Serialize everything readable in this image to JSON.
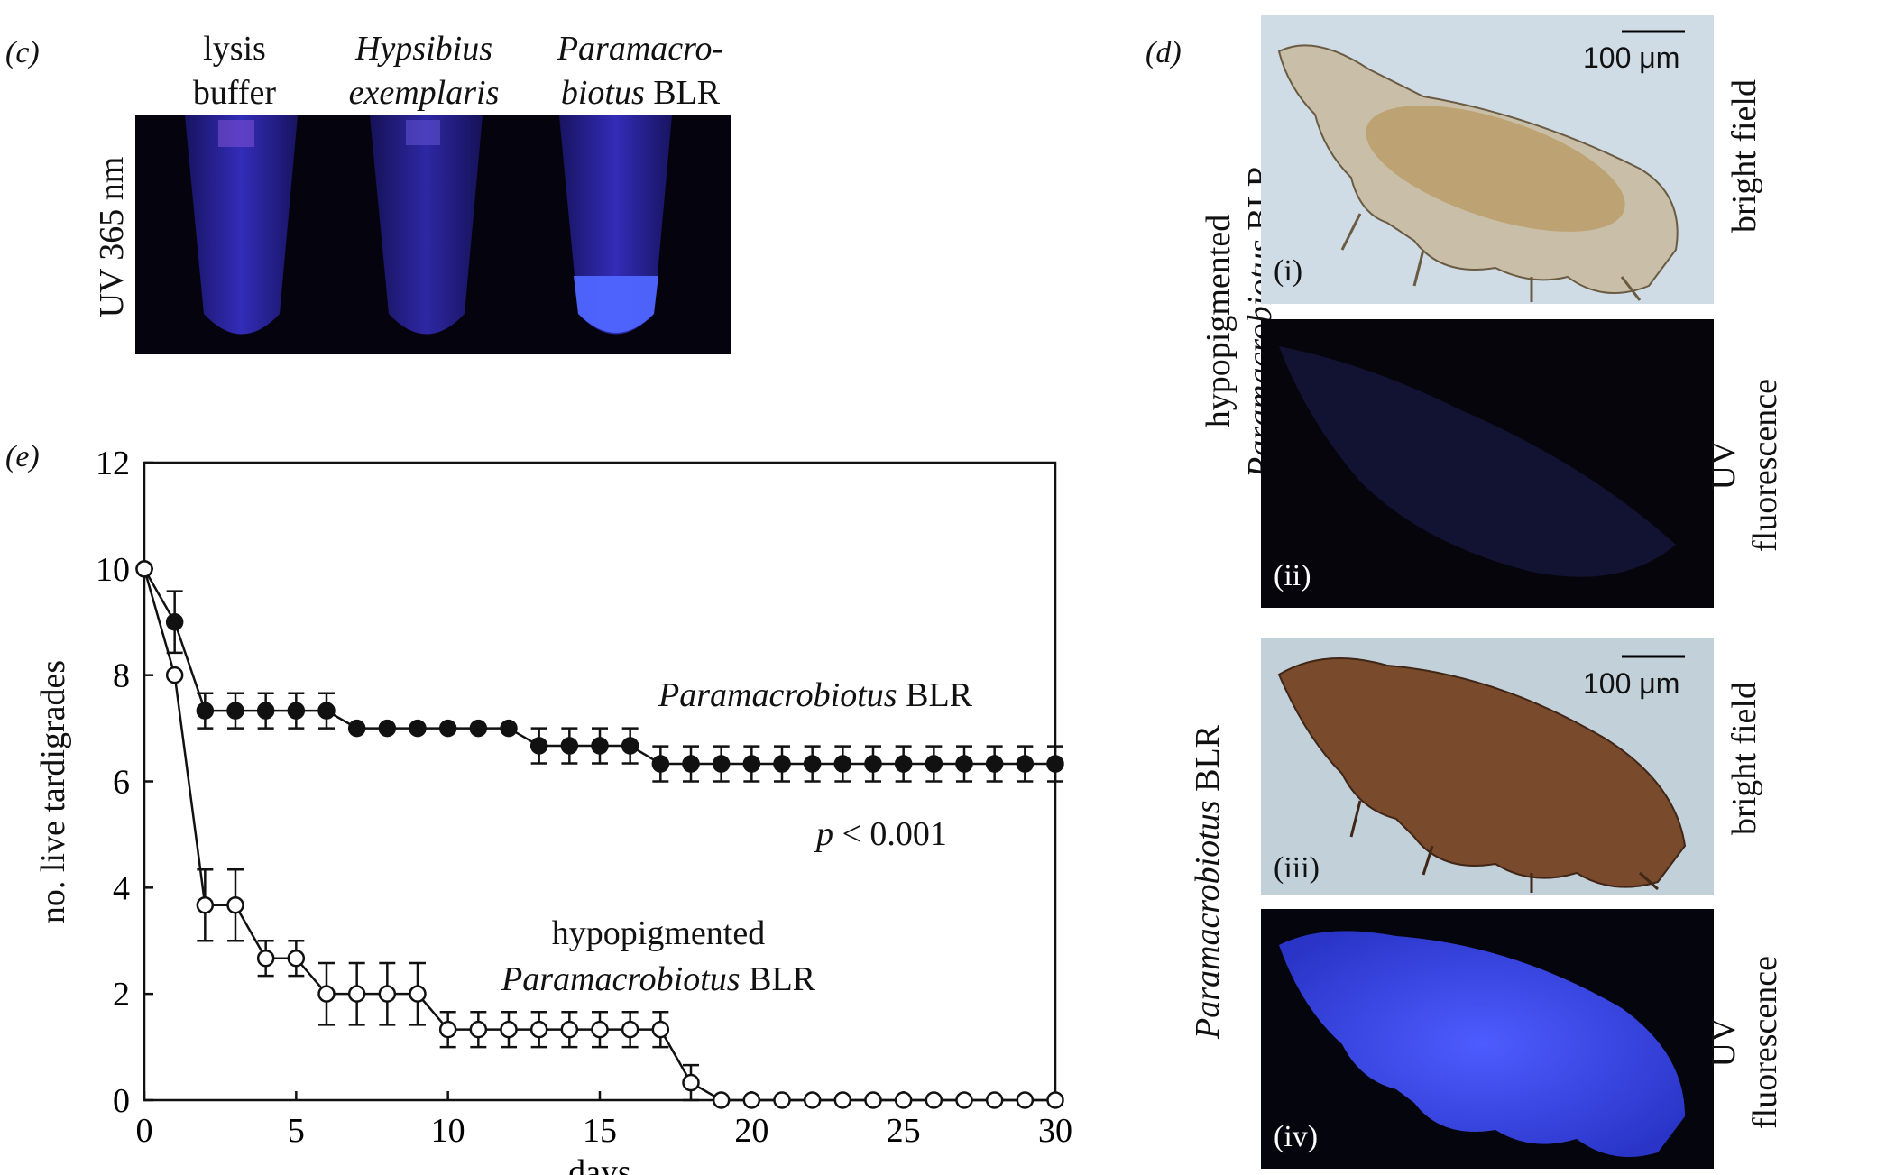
{
  "panel_c": {
    "letter": "(c)",
    "ylabel": "UV 365 nm",
    "tubes": [
      {
        "line1": "lysis",
        "line2": "buffer",
        "italic1": false,
        "line2_plain": ""
      },
      {
        "line1": "Hypsibius",
        "line2": "exemplaris",
        "italic1": true,
        "line2_plain": ""
      },
      {
        "line1": "Paramacro-",
        "line2": "biotus",
        "italic1": true,
        "line2_plain": " BLR"
      }
    ]
  },
  "panel_d": {
    "letter": "(d)",
    "group1_label_line1": "hypopigmented",
    "group1_label_line2_italic": "Paramacrobiotus",
    "group1_label_line2_plain": " BLR",
    "group2_label_italic": "Paramacrobiotus",
    "group2_label_plain": " BLR",
    "images": [
      {
        "tag": "(i)",
        "side": "bright field",
        "scale": "100 μm"
      },
      {
        "tag": "(ii)",
        "side_line1": "UV",
        "side_line2": "fluorescence"
      },
      {
        "tag": "(iii)",
        "side": "bright field",
        "scale": "100 μm"
      },
      {
        "tag": "(iv)",
        "side_line1": "UV",
        "side_line2": "fluorescence"
      }
    ]
  },
  "chart_data": {
    "letter": "(e)",
    "type": "line",
    "xlabel": "days",
    "ylabel": "no. live tardigrades",
    "xlim": [
      0,
      30
    ],
    "ylim": [
      0,
      12
    ],
    "xticks": [
      0,
      5,
      10,
      15,
      20,
      25,
      30
    ],
    "yticks": [
      0,
      2,
      4,
      6,
      8,
      10,
      12
    ],
    "series": [
      {
        "name": "Paramacrobiotus BLR",
        "label_italic": "Paramacrobiotus",
        "label_plain": " BLR",
        "marker": "filled",
        "x": [
          0,
          1,
          2,
          3,
          4,
          5,
          6,
          7,
          8,
          9,
          10,
          11,
          12,
          13,
          14,
          15,
          16,
          17,
          18,
          19,
          20,
          21,
          22,
          23,
          24,
          25,
          26,
          27,
          28,
          29,
          30
        ],
        "y": [
          10,
          9,
          7.33,
          7.33,
          7.33,
          7.33,
          7.33,
          7,
          7,
          7,
          7,
          7,
          7,
          6.67,
          6.67,
          6.67,
          6.67,
          6.33,
          6.33,
          6.33,
          6.33,
          6.33,
          6.33,
          6.33,
          6.33,
          6.33,
          6.33,
          6.33,
          6.33,
          6.33,
          6.33
        ],
        "err": [
          0,
          0.58,
          0.33,
          0.33,
          0.33,
          0.33,
          0.33,
          0,
          0,
          0,
          0,
          0,
          0,
          0.33,
          0.33,
          0.33,
          0.33,
          0.33,
          0.33,
          0.33,
          0.33,
          0.33,
          0.33,
          0.33,
          0.33,
          0.33,
          0.33,
          0.33,
          0.33,
          0.33,
          0.33
        ]
      },
      {
        "name": "hypopigmented Paramacrobiotus BLR",
        "label_line1": "hypopigmented",
        "label_italic": "Paramacrobiotus",
        "label_plain": " BLR",
        "marker": "open",
        "x": [
          0,
          1,
          2,
          3,
          4,
          5,
          6,
          7,
          8,
          9,
          10,
          11,
          12,
          13,
          14,
          15,
          16,
          17,
          18,
          19,
          20,
          21,
          22,
          23,
          24,
          25,
          26,
          27,
          28,
          29,
          30
        ],
        "y": [
          10,
          8,
          3.67,
          3.67,
          2.67,
          2.67,
          2,
          2,
          2,
          2,
          1.33,
          1.33,
          1.33,
          1.33,
          1.33,
          1.33,
          1.33,
          1.33,
          0.33,
          0,
          0,
          0,
          0,
          0,
          0,
          0,
          0,
          0,
          0,
          0,
          0
        ],
        "err": [
          0,
          0,
          0.67,
          0.67,
          0.33,
          0.33,
          0.58,
          0.58,
          0.58,
          0.58,
          0.33,
          0.33,
          0.33,
          0.33,
          0.33,
          0.33,
          0.33,
          0.33,
          0.33,
          0,
          0,
          0,
          0,
          0,
          0,
          0,
          0,
          0,
          0,
          0,
          0
        ]
      }
    ],
    "annotation": "p < 0.001",
    "annotation_italic": "p",
    "annotation_plain": " < 0.001"
  }
}
